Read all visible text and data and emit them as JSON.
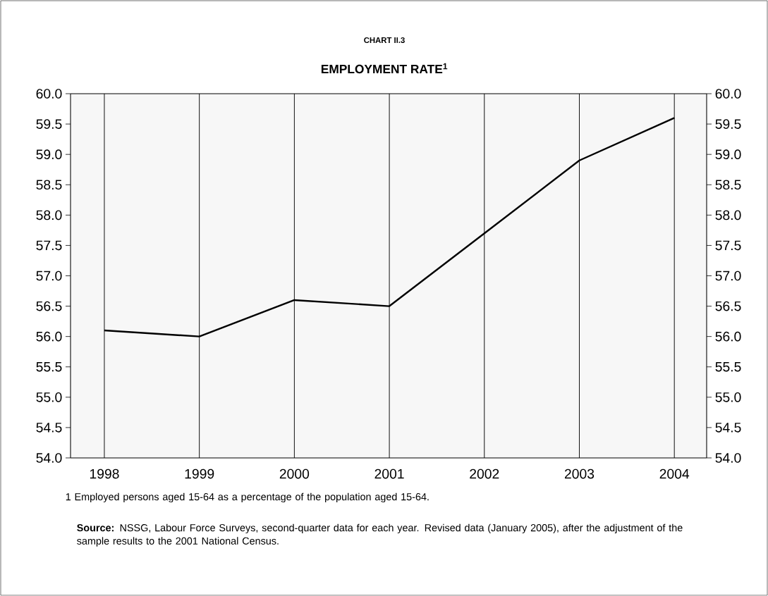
{
  "chart_data": {
    "type": "line",
    "title": "CHART II.3",
    "subtitle": "EMPLOYMENT RATE$^{1}$",
    "categories": [
      "1998",
      "1999",
      "2000",
      "2001",
      "2002",
      "2003",
      "2004"
    ],
    "values": [
      56.1,
      56.0,
      56.6,
      56.5,
      57.7,
      58.9,
      59.6
    ],
    "color": "#000000",
    "ylim": [
      54,
      60
    ],
    "yticks": [
      {
        "value": 54,
        "label": "54.0"
      },
      {
        "value": 54.5,
        "label": "54.5"
      },
      {
        "value": 55,
        "label": "55.0"
      },
      {
        "value": 55.5,
        "label": "55.5"
      },
      {
        "value": 56,
        "label": "56.0"
      },
      {
        "value": 56.5,
        "label": "56.5"
      },
      {
        "value": 57,
        "label": "57.0"
      },
      {
        "value": 57.5,
        "label": "57.5"
      },
      {
        "value": 58,
        "label": "58.0"
      },
      {
        "value": 58.5,
        "label": "58.5"
      },
      {
        "value": 59,
        "label": "59.0"
      },
      {
        "value": 59.5,
        "label": "59.5"
      },
      {
        "value": 60,
        "label": "60.0"
      }
    ],
    "y2lim": [
      54,
      60
    ],
    "y2ticks": [
      {
        "value": 54,
        "label": "54.0"
      },
      {
        "value": 54.5,
        "label": "54.5"
      },
      {
        "value": 55,
        "label": "55.0"
      },
      {
        "value": 55.5,
        "label": "55.5"
      },
      {
        "value": 56,
        "label": "56.0"
      },
      {
        "value": 56.5,
        "label": "56.5"
      },
      {
        "value": 57,
        "label": "57.0"
      },
      {
        "value": 57.5,
        "label": "57.5"
      },
      {
        "value": 58,
        "label": "58.0"
      },
      {
        "value": 58.5,
        "label": "58.5"
      },
      {
        "value": 59,
        "label": "59.0"
      },
      {
        "value": 59.5,
        "label": "59.5"
      },
      {
        "value": 60,
        "label": "60.0"
      }
    ],
    "grid": "x",
    "marker": "none",
    "line_style": "solid",
    "annotations": [
      "1 Employed persons aged 15-64 as a percentage of the population aged 15-64.",
      "**Source:** NSSG, Labour Force Surveys, second-quarter data for each year. Revised data (January 2005), after the adjustment of the sample results to the 2001 National Census."
    ]
  }
}
